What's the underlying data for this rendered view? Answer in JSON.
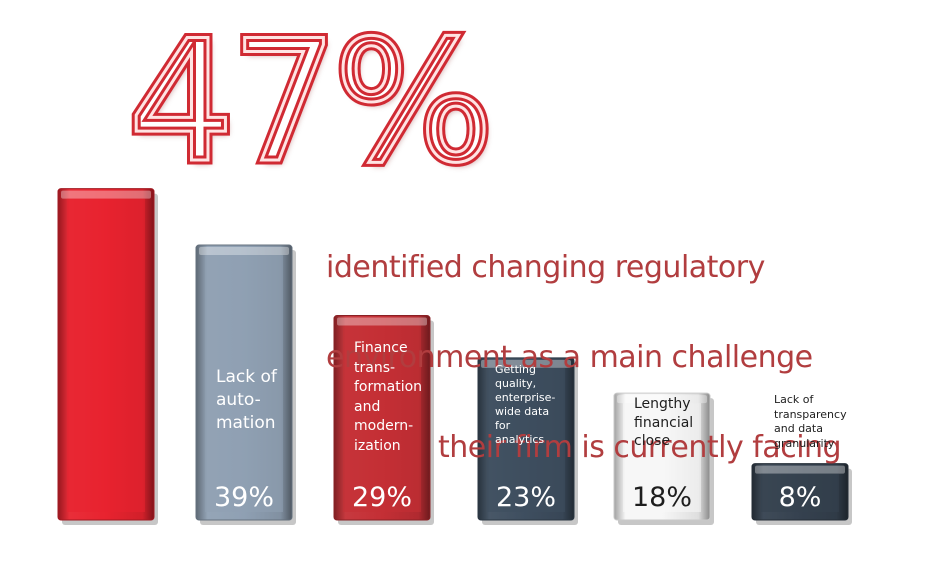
{
  "headline": "47%",
  "subtitle_lines": [
    "identified changing regulatory",
    "environment as a main challenge",
    "their firm is currently facing"
  ],
  "chart_data": {
    "type": "bar",
    "title": "47%",
    "subtitle": "identified changing regulatory environment as a main challenge their firm is currently facing",
    "ylim": [
      0,
      50
    ],
    "grid": false,
    "legend": "none",
    "categories": [
      "changing regulatory environment",
      "Lack of automation",
      "Finance transformation and modernization",
      "Getting quality, enterprise-wide data for analytics",
      "Lengthy financial close",
      "Lack of transparency and data granularity"
    ],
    "values": [
      47,
      39,
      29,
      23,
      18,
      8
    ],
    "value_labels": [
      "",
      "39%",
      "29%",
      "23%",
      "18%",
      "8%"
    ],
    "bar_labels": [
      "",
      "Lack of\nauto-\nmation",
      "Finance\ntrans-\nformation\nand\nmodern-\nization",
      "Getting\nquality,\nenterprise-\nwide data\nfor\nanalytics",
      "Lengthy\nfinancial\nclose",
      "Lack of\ntransparency\nand data\ngranularity"
    ],
    "colors": [
      "#e8232f",
      "#8fa0b3",
      "#c42f35",
      "#3e4e5f",
      "#f7f7f7",
      "#35414f"
    ]
  }
}
